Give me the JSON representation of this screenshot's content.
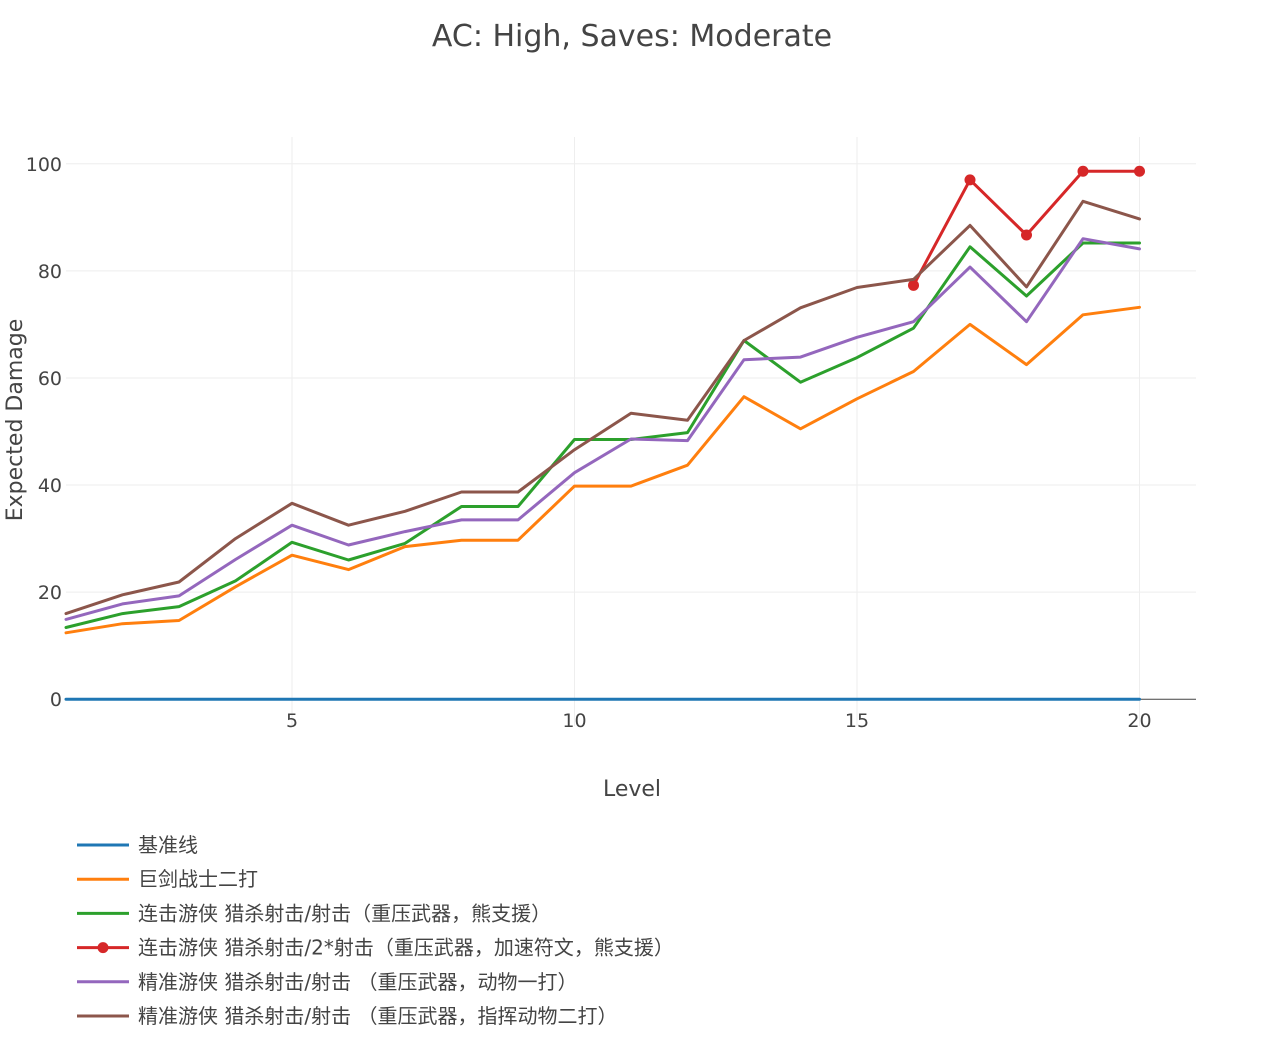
{
  "chart_data": {
    "type": "line",
    "title": "AC: High, Saves: Moderate",
    "xlabel": "Level",
    "ylabel": "Expected Damage",
    "xlim": [
      1,
      21
    ],
    "ylim": [
      -5,
      105
    ],
    "xticks": [
      5,
      10,
      15,
      20
    ],
    "yticks": [
      0,
      20,
      40,
      60,
      80,
      100
    ],
    "grid": true,
    "legend_position": "bottom-left",
    "series": [
      {
        "name": "基准线",
        "color": "#1f77b4",
        "mode": "lines",
        "x": [
          1,
          2,
          3,
          4,
          5,
          6,
          7,
          8,
          9,
          10,
          11,
          12,
          13,
          14,
          15,
          16,
          17,
          18,
          19,
          20
        ],
        "values": [
          0,
          0,
          0,
          0,
          0,
          0,
          0,
          0,
          0,
          0,
          0,
          0,
          0,
          0,
          0,
          0,
          0,
          0,
          0,
          0
        ]
      },
      {
        "name": "巨剑战士二打",
        "color": "#ff7f0e",
        "mode": "lines",
        "x": [
          1,
          2,
          3,
          4,
          5,
          6,
          7,
          8,
          9,
          10,
          11,
          12,
          13,
          14,
          15,
          16,
          17,
          18,
          19,
          20
        ],
        "values": [
          12.4,
          14.1,
          14.7,
          21.0,
          26.9,
          24.2,
          28.5,
          29.7,
          29.7,
          39.8,
          39.8,
          43.7,
          56.5,
          50.5,
          56.1,
          61.2,
          70.0,
          62.5,
          71.8,
          73.2
        ]
      },
      {
        "name": "连击游侠 猎杀射击/射击（重压武器，熊支援）",
        "color": "#2ca02c",
        "mode": "lines",
        "x": [
          1,
          2,
          3,
          4,
          5,
          6,
          7,
          8,
          9,
          10,
          11,
          12,
          13,
          14,
          15,
          16,
          17,
          18,
          19,
          20
        ],
        "values": [
          13.4,
          16.0,
          17.3,
          22.1,
          29.3,
          26.0,
          29.1,
          36.0,
          36.0,
          48.5,
          48.5,
          49.8,
          67.0,
          59.2,
          63.8,
          69.3,
          84.5,
          75.3,
          85.2,
          85.2
        ]
      },
      {
        "name": "连击游侠 猎杀射击/2*射击（重压武器，加速符文，熊支援）",
        "color": "#d62728",
        "mode": "lines+markers",
        "x": [
          16,
          17,
          18,
          19,
          20
        ],
        "values": [
          77.3,
          97.0,
          86.7,
          98.6,
          98.6
        ]
      },
      {
        "name": "精准游侠 猎杀射击/射击 （重压武器，动物一打）",
        "color": "#9467bd",
        "mode": "lines",
        "x": [
          1,
          2,
          3,
          4,
          5,
          6,
          7,
          8,
          9,
          10,
          11,
          12,
          13,
          14,
          15,
          16,
          17,
          18,
          19,
          20
        ],
        "values": [
          14.9,
          17.8,
          19.3,
          26.1,
          32.5,
          28.8,
          31.3,
          33.5,
          33.5,
          42.3,
          48.6,
          48.3,
          63.4,
          63.9,
          67.6,
          70.5,
          80.7,
          70.5,
          86.0,
          84.1
        ]
      },
      {
        "name": "精准游侠 猎杀射击/射击 （重压武器，指挥动物二打）",
        "color": "#8c564b",
        "mode": "lines",
        "x": [
          1,
          2,
          3,
          4,
          5,
          6,
          7,
          8,
          9,
          10,
          11,
          12,
          13,
          14,
          15,
          16,
          17,
          18,
          19,
          20
        ],
        "values": [
          16.0,
          19.5,
          21.9,
          30.0,
          36.6,
          32.5,
          35.1,
          38.7,
          38.7,
          46.6,
          53.4,
          52.1,
          67.0,
          73.1,
          76.9,
          78.4,
          88.5,
          77.0,
          93.0,
          89.7
        ]
      }
    ]
  }
}
